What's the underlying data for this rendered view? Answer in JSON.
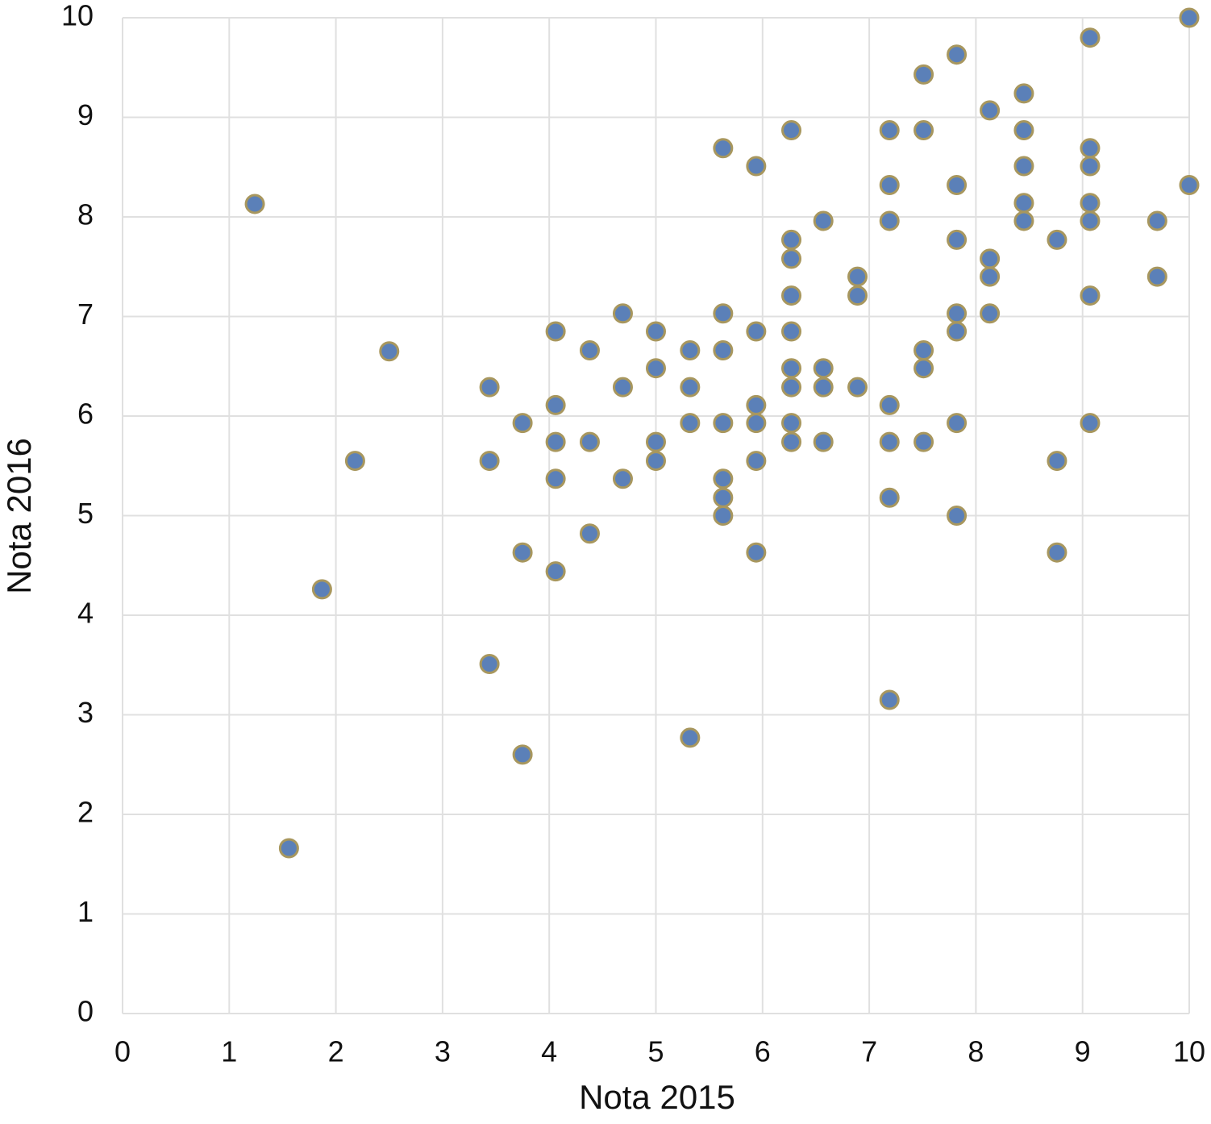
{
  "chart_data": {
    "type": "scatter",
    "x_label": "Nota 2015",
    "y_label": "Nota 2016",
    "x": [
      1.24,
      1.56,
      1.87,
      2.18,
      2.5,
      3.44,
      3.44,
      3.44,
      3.75,
      3.75,
      3.75,
      4.06,
      4.06,
      4.06,
      4.06,
      4.06,
      4.38,
      4.38,
      4.38,
      4.69,
      4.69,
      4.69,
      5.0,
      5.0,
      5.0,
      5.0,
      5.32,
      5.32,
      5.32,
      5.32,
      5.63,
      5.63,
      5.63,
      5.63,
      5.63,
      5.63,
      5.63,
      5.94,
      5.94,
      5.94,
      5.94,
      5.94,
      5.94,
      6.27,
      6.27,
      6.27,
      6.27,
      6.27,
      6.27,
      6.27,
      6.27,
      6.27,
      6.57,
      6.57,
      6.57,
      6.57,
      6.89,
      6.89,
      6.89,
      7.19,
      7.19,
      7.19,
      7.19,
      7.19,
      7.19,
      7.19,
      7.51,
      7.51,
      7.51,
      7.51,
      7.51,
      7.82,
      7.82,
      7.82,
      7.82,
      7.82,
      7.82,
      7.82,
      8.13,
      8.13,
      8.13,
      8.13,
      8.45,
      8.45,
      8.45,
      8.45,
      8.45,
      8.76,
      8.76,
      8.76,
      9.07,
      9.07,
      9.07,
      9.07,
      9.07,
      9.07,
      9.07,
      9.7,
      9.7,
      10,
      10
    ],
    "values": [
      8.13,
      1.66,
      4.26,
      5.55,
      6.65,
      6.29,
      5.55,
      3.51,
      5.93,
      4.63,
      2.6,
      6.85,
      6.11,
      5.74,
      5.37,
      4.44,
      6.66,
      5.74,
      4.82,
      7.03,
      6.29,
      5.37,
      6.85,
      6.48,
      5.74,
      5.55,
      6.66,
      6.29,
      5.93,
      2.77,
      8.69,
      7.03,
      6.66,
      5.93,
      5.37,
      5.18,
      5.0,
      8.51,
      6.85,
      6.11,
      5.93,
      5.55,
      4.63,
      8.87,
      7.77,
      7.58,
      7.21,
      6.85,
      6.48,
      6.29,
      5.93,
      5.74,
      7.96,
      6.48,
      6.29,
      5.74,
      7.4,
      7.21,
      6.29,
      8.87,
      8.32,
      7.96,
      6.11,
      5.74,
      5.18,
      3.15,
      9.43,
      8.87,
      6.66,
      6.48,
      5.74,
      9.63,
      8.32,
      7.77,
      7.03,
      6.85,
      5.93,
      5.0,
      9.07,
      7.58,
      7.4,
      7.03,
      9.24,
      8.87,
      8.51,
      8.14,
      7.96,
      7.77,
      5.55,
      4.63,
      9.8,
      8.69,
      8.51,
      8.14,
      7.96,
      7.21,
      5.93,
      7.96,
      7.4,
      10,
      8.32
    ],
    "color": "#5b80b8",
    "edge_color": "#a8975e",
    "xlim": [
      0,
      10
    ],
    "ylim": [
      0,
      10
    ],
    "xticks": [
      0,
      1,
      2,
      3,
      4,
      5,
      6,
      7,
      8,
      9,
      10
    ],
    "yticks": [
      0,
      1,
      2,
      3,
      4,
      5,
      6,
      7,
      8,
      9,
      10
    ],
    "grid": true
  }
}
